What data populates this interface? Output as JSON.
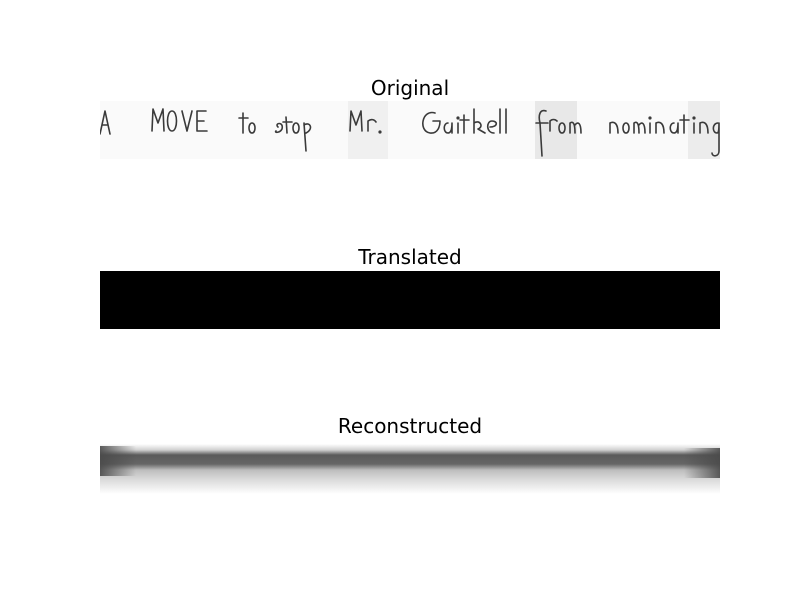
{
  "panels": [
    {
      "title": "Original"
    },
    {
      "title": "Translated"
    },
    {
      "title": "Reconstructed"
    }
  ],
  "original_handwriting_text": "A MOVE to stop Mr. Gaitskell from nominating"
}
